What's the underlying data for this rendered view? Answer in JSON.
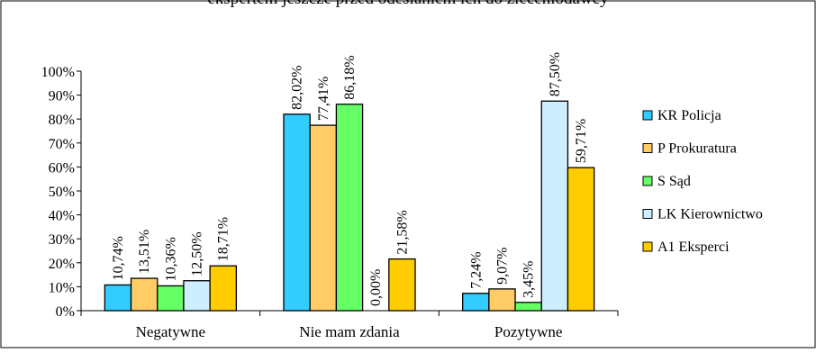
{
  "chart_data": {
    "type": "bar",
    "title": "ekspertem jeszcze przed odesłaniem ich do zleceniodawcy",
    "categories": [
      "Negatywne",
      "Nie mam zdania",
      "Pozytywne"
    ],
    "series": [
      {
        "name": "KR Policja",
        "color": "#33CCFF",
        "values": [
          10.74,
          82.02,
          7.24
        ],
        "labels": [
          "10,74%",
          "82,02%",
          "7,24%"
        ]
      },
      {
        "name": "P Prokuratura",
        "color": "#FFCC66",
        "values": [
          13.51,
          77.41,
          9.07
        ],
        "labels": [
          "13,51%",
          "77,41%",
          "9,07%"
        ]
      },
      {
        "name": "S Sąd",
        "color": "#66FF66",
        "values": [
          10.36,
          86.18,
          3.45
        ],
        "labels": [
          "10,36%",
          "86,18%",
          "3,45%"
        ]
      },
      {
        "name": "LK Kierownictwo",
        "color": "#CCEEFF",
        "values": [
          12.5,
          0.0,
          87.5
        ],
        "labels": [
          "12,50%",
          "0,00%",
          "87,50%"
        ]
      },
      {
        "name": "A1 Eksperci",
        "color": "#FFCC00",
        "values": [
          18.71,
          21.58,
          59.71
        ],
        "labels": [
          "18,71%",
          "21,58%",
          "59,71%"
        ]
      }
    ],
    "yticks": [
      "0%",
      "10%",
      "20%",
      "30%",
      "40%",
      "50%",
      "60%",
      "70%",
      "80%",
      "90%",
      "100%"
    ],
    "ylim": [
      0,
      100
    ],
    "legend_position": "right",
    "grid": false
  }
}
